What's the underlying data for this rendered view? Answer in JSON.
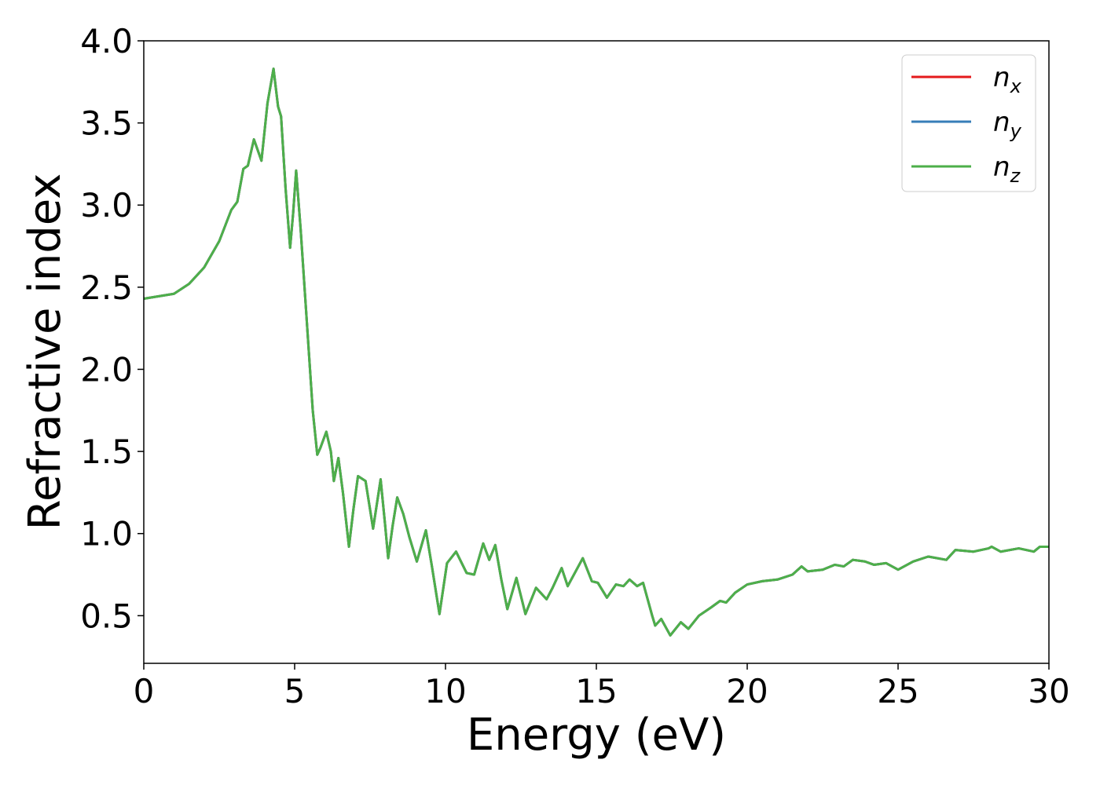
{
  "chart_data": {
    "type": "line",
    "x_label": "Energy (eV)",
    "y_label": "Refractive index",
    "x": [
      0,
      1,
      1.5,
      2,
      2.5,
      2.9,
      3.1,
      3.3,
      3.45,
      3.65,
      3.9,
      4.1,
      4.3,
      4.45,
      4.55,
      4.7,
      4.85,
      4.95,
      5.05,
      5.2,
      5.4,
      5.6,
      5.75,
      5.85,
      6.05,
      6.2,
      6.3,
      6.45,
      6.6,
      6.8,
      6.95,
      7.1,
      7.35,
      7.6,
      7.85,
      8.0,
      8.1,
      8.25,
      8.4,
      8.6,
      8.8,
      9.05,
      9.35,
      9.55,
      9.8,
      10.05,
      10.35,
      10.7,
      10.95,
      11.25,
      11.45,
      11.65,
      11.85,
      12.05,
      12.35,
      12.65,
      13.0,
      13.35,
      13.55,
      13.85,
      14.05,
      14.55,
      14.85,
      15.05,
      15.35,
      15.65,
      15.9,
      16.1,
      16.35,
      16.55,
      16.85,
      16.95,
      17.15,
      17.45,
      17.8,
      18.05,
      18.4,
      18.8,
      19.1,
      19.3,
      19.6,
      20.0,
      20.5,
      21.0,
      21.5,
      21.8,
      22.0,
      22.5,
      22.9,
      23.2,
      23.5,
      23.9,
      24.2,
      24.6,
      25.0,
      25.5,
      26.0,
      26.6,
      26.9,
      27.5,
      28.0,
      28.1,
      28.4,
      29.0,
      29.5,
      29.7,
      30.0
    ],
    "series": [
      {
        "name": "nx",
        "color": "#e41a1c",
        "values": [
          2.43,
          2.46,
          2.52,
          2.62,
          2.78,
          2.97,
          3.02,
          3.22,
          3.24,
          3.4,
          3.27,
          3.62,
          3.83,
          3.6,
          3.54,
          3.1,
          2.74,
          2.95,
          3.21,
          2.85,
          2.3,
          1.75,
          1.48,
          1.52,
          1.62,
          1.5,
          1.32,
          1.46,
          1.25,
          0.92,
          1.15,
          1.35,
          1.32,
          1.03,
          1.33,
          1.05,
          0.85,
          1.05,
          1.22,
          1.12,
          0.98,
          0.83,
          1.02,
          0.8,
          0.51,
          0.82,
          0.89,
          0.76,
          0.75,
          0.94,
          0.84,
          0.93,
          0.72,
          0.54,
          0.73,
          0.51,
          0.67,
          0.6,
          0.67,
          0.79,
          0.68,
          0.85,
          0.71,
          0.7,
          0.61,
          0.69,
          0.68,
          0.72,
          0.68,
          0.7,
          0.5,
          0.44,
          0.48,
          0.38,
          0.46,
          0.42,
          0.5,
          0.55,
          0.59,
          0.58,
          0.64,
          0.69,
          0.71,
          0.72,
          0.75,
          0.8,
          0.77,
          0.78,
          0.81,
          0.8,
          0.84,
          0.83,
          0.81,
          0.82,
          0.78,
          0.83,
          0.86,
          0.84,
          0.9,
          0.89,
          0.91,
          0.92,
          0.89,
          0.91,
          0.89,
          0.92,
          0.92
        ]
      },
      {
        "name": "ny",
        "color": "#377eb8",
        "values": [
          2.43,
          2.46,
          2.52,
          2.62,
          2.78,
          2.97,
          3.02,
          3.22,
          3.24,
          3.4,
          3.27,
          3.62,
          3.83,
          3.6,
          3.54,
          3.1,
          2.74,
          2.95,
          3.21,
          2.85,
          2.3,
          1.75,
          1.48,
          1.52,
          1.62,
          1.5,
          1.32,
          1.46,
          1.25,
          0.92,
          1.15,
          1.35,
          1.32,
          1.03,
          1.33,
          1.05,
          0.85,
          1.05,
          1.22,
          1.12,
          0.98,
          0.83,
          1.02,
          0.8,
          0.51,
          0.82,
          0.89,
          0.76,
          0.75,
          0.94,
          0.84,
          0.93,
          0.72,
          0.54,
          0.73,
          0.51,
          0.67,
          0.6,
          0.67,
          0.79,
          0.68,
          0.85,
          0.71,
          0.7,
          0.61,
          0.69,
          0.68,
          0.72,
          0.68,
          0.7,
          0.5,
          0.44,
          0.48,
          0.38,
          0.46,
          0.42,
          0.5,
          0.55,
          0.59,
          0.58,
          0.64,
          0.69,
          0.71,
          0.72,
          0.75,
          0.8,
          0.77,
          0.78,
          0.81,
          0.8,
          0.84,
          0.83,
          0.81,
          0.82,
          0.78,
          0.83,
          0.86,
          0.84,
          0.9,
          0.89,
          0.91,
          0.92,
          0.89,
          0.91,
          0.89,
          0.92,
          0.92
        ]
      },
      {
        "name": "nz",
        "color": "#4daf4a",
        "values": [
          2.43,
          2.46,
          2.52,
          2.62,
          2.78,
          2.97,
          3.02,
          3.22,
          3.24,
          3.4,
          3.27,
          3.62,
          3.83,
          3.6,
          3.54,
          3.1,
          2.74,
          2.95,
          3.21,
          2.85,
          2.3,
          1.75,
          1.48,
          1.52,
          1.62,
          1.5,
          1.32,
          1.46,
          1.25,
          0.92,
          1.15,
          1.35,
          1.32,
          1.03,
          1.33,
          1.05,
          0.85,
          1.05,
          1.22,
          1.12,
          0.98,
          0.83,
          1.02,
          0.8,
          0.51,
          0.82,
          0.89,
          0.76,
          0.75,
          0.94,
          0.84,
          0.93,
          0.72,
          0.54,
          0.73,
          0.51,
          0.67,
          0.6,
          0.67,
          0.79,
          0.68,
          0.85,
          0.71,
          0.7,
          0.61,
          0.69,
          0.68,
          0.72,
          0.68,
          0.7,
          0.5,
          0.44,
          0.48,
          0.38,
          0.46,
          0.42,
          0.5,
          0.55,
          0.59,
          0.58,
          0.64,
          0.69,
          0.71,
          0.72,
          0.75,
          0.8,
          0.77,
          0.78,
          0.81,
          0.8,
          0.84,
          0.83,
          0.81,
          0.82,
          0.78,
          0.83,
          0.86,
          0.84,
          0.9,
          0.89,
          0.91,
          0.92,
          0.89,
          0.91,
          0.89,
          0.92,
          0.92
        ]
      }
    ],
    "xlim": [
      0,
      30
    ],
    "xticks": [
      0,
      5,
      10,
      15,
      20,
      25,
      30
    ],
    "ylim": [
      0.21,
      4.0
    ],
    "yticks": [
      0.5,
      {
        "value": 1,
        "label": "1.0"
      },
      1.5,
      {
        "value": 2,
        "label": "2.0"
      },
      2.5,
      {
        "value": 3,
        "label": "3.0"
      },
      3.5,
      {
        "value": 4,
        "label": "4.0"
      }
    ],
    "legend": "upper right",
    "grid": false
  }
}
